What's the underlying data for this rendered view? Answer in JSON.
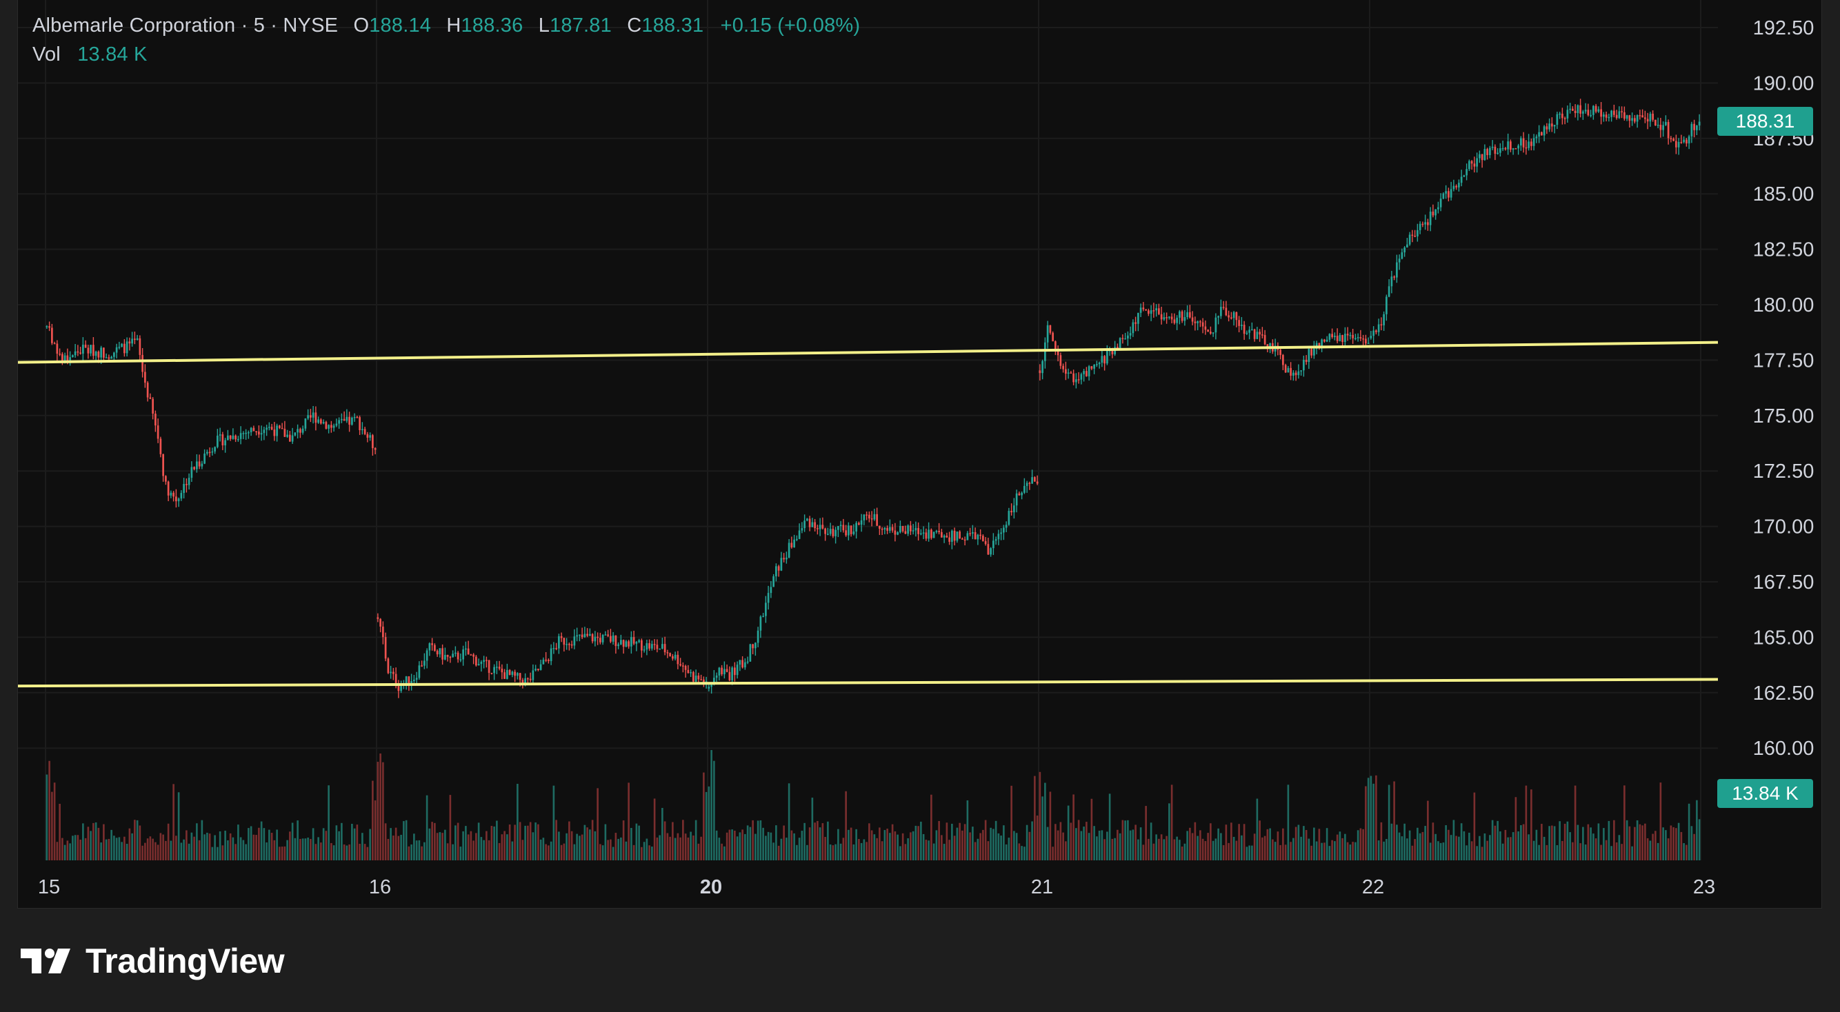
{
  "legend": {
    "symbol": "Albemarle Corporation · 5 · NYSE",
    "open_label": "O",
    "open": "188.14",
    "high_label": "H",
    "high": "188.36",
    "low_label": "L",
    "low": "187.81",
    "close_label": "C",
    "close": "188.31",
    "change": "+0.15 (+0.08%)",
    "vol_label": "Vol",
    "vol": "13.84 K"
  },
  "tags": {
    "last_price": "188.31",
    "last_volume": "13.84 K"
  },
  "brand": {
    "name": "TradingView"
  },
  "colors": {
    "up": "#26a69a",
    "down": "#ef5350",
    "up_volume": "#1e6b62",
    "down_volume": "#7a2e2e",
    "trendline": "#f3f08a",
    "background": "#0f0f0f",
    "text": "#d1d4dc"
  },
  "chart_data": {
    "type": "candlestick",
    "interval": "5 minutes",
    "y_axis": {
      "ticks": [
        "192.50",
        "190.00",
        "187.50",
        "185.00",
        "182.50",
        "180.00",
        "177.50",
        "175.00",
        "172.50",
        "170.00",
        "167.50",
        "165.00",
        "162.50",
        "160.00"
      ],
      "ylim": [
        156.0,
        193.0
      ]
    },
    "x_axis": {
      "tick_labels": [
        "15",
        "16",
        "20",
        "21",
        "22",
        "23"
      ],
      "bold_labels": [
        "20"
      ]
    },
    "session_path": [
      {
        "session": "15",
        "points": [
          [
            0,
            179.0
          ],
          [
            6,
            177.5
          ],
          [
            14,
            178.0
          ],
          [
            24,
            177.8
          ],
          [
            35,
            178.3
          ],
          [
            37,
            177.0
          ],
          [
            43,
            174.0
          ],
          [
            46,
            171.8
          ],
          [
            50,
            171.2
          ],
          [
            56,
            172.5
          ],
          [
            65,
            173.8
          ],
          [
            75,
            174.2
          ],
          [
            85,
            174.5
          ],
          [
            95,
            174.0
          ],
          [
            103,
            175.0
          ],
          [
            110,
            174.5
          ],
          [
            120,
            174.8
          ],
          [
            127,
            173.5
          ]
        ]
      },
      {
        "session": "16",
        "points": [
          [
            0,
            166.0
          ],
          [
            4,
            163.5
          ],
          [
            8,
            162.8
          ],
          [
            14,
            163.2
          ],
          [
            20,
            164.5
          ],
          [
            28,
            164.0
          ],
          [
            34,
            164.3
          ],
          [
            40,
            163.8
          ],
          [
            46,
            163.5
          ],
          [
            52,
            163.2
          ],
          [
            58,
            163.0
          ],
          [
            64,
            163.8
          ],
          [
            70,
            164.8
          ],
          [
            80,
            165.0
          ],
          [
            90,
            164.9
          ],
          [
            100,
            164.7
          ],
          [
            110,
            164.5
          ],
          [
            116,
            164.0
          ],
          [
            122,
            163.2
          ],
          [
            127,
            163.0
          ]
        ]
      },
      {
        "session": "20",
        "points": [
          [
            0,
            162.8
          ],
          [
            4,
            163.6
          ],
          [
            8,
            163.3
          ],
          [
            14,
            163.9
          ],
          [
            18,
            165.0
          ],
          [
            22,
            166.5
          ],
          [
            26,
            168.0
          ],
          [
            32,
            169.2
          ],
          [
            38,
            170.3
          ],
          [
            46,
            169.7
          ],
          [
            56,
            169.9
          ],
          [
            62,
            170.5
          ],
          [
            68,
            169.9
          ],
          [
            76,
            169.8
          ],
          [
            86,
            169.7
          ],
          [
            96,
            169.5
          ],
          [
            104,
            169.6
          ],
          [
            108,
            168.8
          ],
          [
            114,
            170.0
          ],
          [
            118,
            171.2
          ],
          [
            122,
            171.6
          ],
          [
            127,
            172.2
          ]
        ]
      },
      {
        "session": "21",
        "points": [
          [
            0,
            177.0
          ],
          [
            3,
            179.0
          ],
          [
            6,
            178.0
          ],
          [
            10,
            176.8
          ],
          [
            16,
            176.7
          ],
          [
            22,
            177.2
          ],
          [
            28,
            178.0
          ],
          [
            34,
            178.6
          ],
          [
            38,
            179.6
          ],
          [
            44,
            179.8
          ],
          [
            50,
            179.3
          ],
          [
            56,
            179.5
          ],
          [
            62,
            179.0
          ],
          [
            66,
            178.6
          ],
          [
            70,
            179.8
          ],
          [
            74,
            179.6
          ],
          [
            78,
            179.0
          ],
          [
            84,
            178.6
          ],
          [
            88,
            178.2
          ],
          [
            92,
            177.8
          ],
          [
            96,
            177.0
          ],
          [
            100,
            176.8
          ],
          [
            104,
            177.8
          ],
          [
            110,
            178.4
          ],
          [
            118,
            178.5
          ],
          [
            124,
            178.3
          ],
          [
            127,
            178.4
          ]
        ]
      },
      {
        "session": "22",
        "points": [
          [
            0,
            178.5
          ],
          [
            4,
            179.3
          ],
          [
            8,
            181.2
          ],
          [
            12,
            182.2
          ],
          [
            16,
            183.2
          ],
          [
            22,
            183.8
          ],
          [
            26,
            184.5
          ],
          [
            30,
            185.1
          ],
          [
            34,
            185.6
          ],
          [
            38,
            186.3
          ],
          [
            44,
            186.8
          ],
          [
            50,
            187.1
          ],
          [
            56,
            187.3
          ],
          [
            62,
            187.2
          ],
          [
            66,
            187.8
          ],
          [
            70,
            188.3
          ],
          [
            74,
            188.6
          ],
          [
            80,
            188.8
          ],
          [
            86,
            188.7
          ],
          [
            94,
            188.6
          ],
          [
            102,
            188.5
          ],
          [
            108,
            188.4
          ],
          [
            114,
            188.0
          ],
          [
            118,
            187.0
          ],
          [
            121,
            187.2
          ],
          [
            124,
            187.9
          ],
          [
            127,
            188.31
          ]
        ]
      }
    ],
    "trendlines": [
      {
        "name": "upper",
        "from": {
          "session": "15",
          "bar": 0,
          "price": 177.4
        },
        "to": {
          "session": "22",
          "bar": 127,
          "price": 178.3
        }
      },
      {
        "name": "lower",
        "from": {
          "session": "15",
          "bar": 0,
          "price": 162.8
        },
        "to": {
          "session": "22",
          "bar": 127,
          "price": 163.1
        }
      }
    ],
    "last_price": 188.31,
    "last_volume": "13.84 K"
  }
}
